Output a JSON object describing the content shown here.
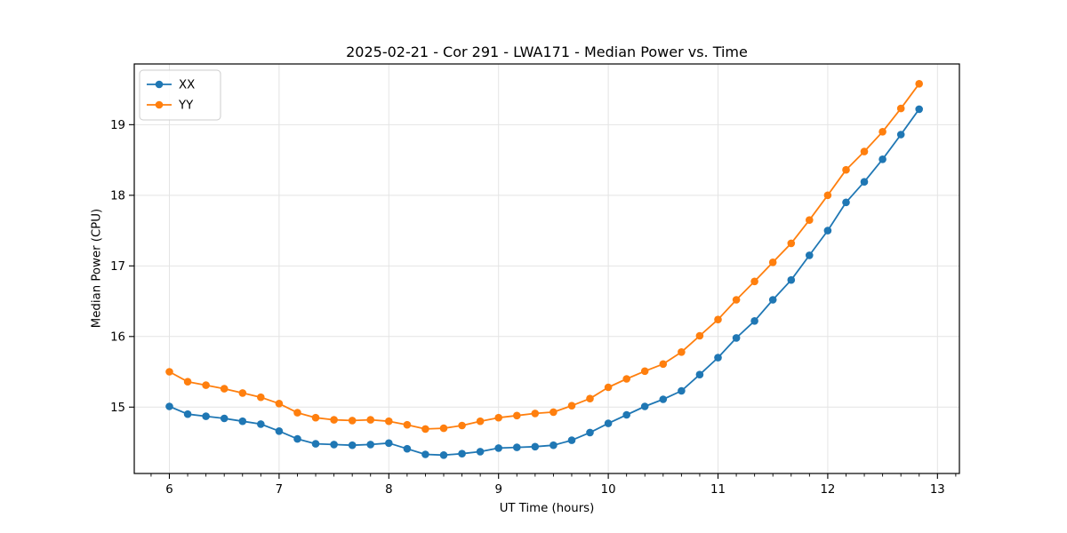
{
  "figure": {
    "background": "#ffffff",
    "text_color": "#000000"
  },
  "chart_data": {
    "type": "line",
    "title": "2025-02-21 - Cor 291 - LWA171 - Median Power vs. Time",
    "xlabel": "UT Time (hours)",
    "ylabel": "Median Power (CPU)",
    "xlim": [
      5.68,
      13.2
    ],
    "ylim": [
      14.06,
      19.86
    ],
    "xticks": [
      6,
      7,
      8,
      9,
      10,
      11,
      12,
      13
    ],
    "yticks": [
      15,
      16,
      17,
      18,
      19
    ],
    "x_minor_tick_step": 0.166667,
    "grid": true,
    "grid_color": "#e4e4e4",
    "spine_color": "#000000",
    "legend_position": "upper-left",
    "marker": "circle",
    "x": [
      6.0,
      6.1667,
      6.3333,
      6.5,
      6.6667,
      6.8333,
      7.0,
      7.1667,
      7.3333,
      7.5,
      7.6667,
      7.8333,
      8.0,
      8.1667,
      8.3333,
      8.5,
      8.6667,
      8.8333,
      9.0,
      9.1667,
      9.3333,
      9.5,
      9.6667,
      9.8333,
      10.0,
      10.1667,
      10.3333,
      10.5,
      10.6667,
      10.8333,
      11.0,
      11.1667,
      11.3333,
      11.5,
      11.6667,
      11.8333,
      12.0,
      12.1667,
      12.3333,
      12.5,
      12.6667,
      12.8333
    ],
    "series": [
      {
        "name": "XX",
        "color": "#1f77b4",
        "values": [
          15.01,
          14.9,
          14.87,
          14.84,
          14.8,
          14.76,
          14.66,
          14.55,
          14.48,
          14.47,
          14.46,
          14.47,
          14.49,
          14.41,
          14.33,
          14.32,
          14.34,
          14.37,
          14.42,
          14.43,
          14.44,
          14.46,
          14.53,
          14.64,
          14.77,
          14.89,
          15.01,
          15.11,
          15.23,
          15.46,
          15.7,
          15.98,
          16.22,
          16.52,
          16.8,
          17.15,
          17.5,
          17.9,
          18.19,
          18.51,
          18.86,
          19.22
        ]
      },
      {
        "name": "YY",
        "color": "#ff7f0e",
        "values": [
          15.5,
          15.36,
          15.31,
          15.26,
          15.2,
          15.14,
          15.05,
          14.92,
          14.85,
          14.82,
          14.81,
          14.82,
          14.8,
          14.75,
          14.69,
          14.7,
          14.74,
          14.8,
          14.85,
          14.88,
          14.91,
          14.93,
          15.02,
          15.12,
          15.28,
          15.4,
          15.51,
          15.61,
          15.78,
          16.01,
          16.24,
          16.52,
          16.78,
          17.05,
          17.32,
          17.65,
          18.0,
          18.36,
          18.62,
          18.9,
          19.23,
          19.58
        ]
      }
    ]
  }
}
